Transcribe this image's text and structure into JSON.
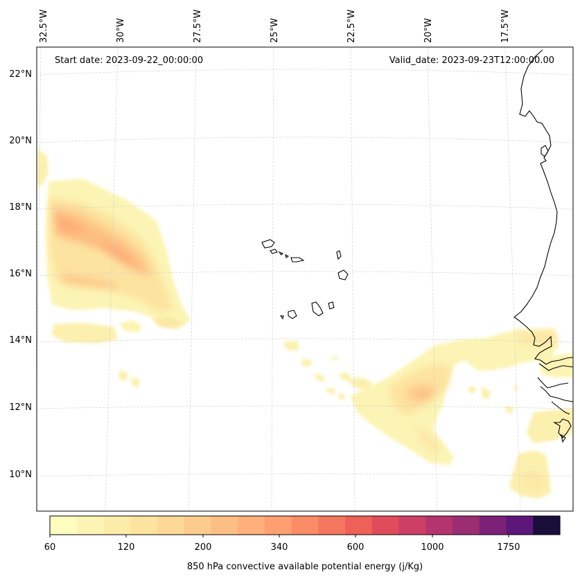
{
  "header": {
    "start_date": "Start date: 2023-09-22_00:00:00",
    "valid_date": "Valid_date: 2023-09-23T12:00:00.00"
  },
  "map": {
    "lon_labels": [
      "32.5°W",
      "30°W",
      "27.5°W",
      "25°W",
      "22.5°W",
      "20°W",
      "17.5°W"
    ],
    "lat_labels": [
      "22°N",
      "20°N",
      "18°N",
      "16°N",
      "14°N",
      "12°N",
      "10°N"
    ],
    "field": "850 hPa convective available potential energy",
    "gridlines": true
  },
  "colorbar": {
    "label": "850 hPa convective available potential energy (j/Kg)",
    "tick_labels": [
      "60",
      "120",
      "200",
      "340",
      "600",
      "1000",
      "1750"
    ],
    "colors": [
      "#fcfdbf",
      "#fcf4b4",
      "#fcecaa",
      "#fce3a0",
      "#fdd896",
      "#fdcc8c",
      "#fdbe83",
      "#feaf7a",
      "#fe9f72",
      "#fb8c68",
      "#f6775f",
      "#ee6159",
      "#e04c5c",
      "#cc3f66",
      "#b4356e",
      "#9b2d73",
      "#7c2177",
      "#5d177a",
      "#1a0e3a"
    ]
  }
}
